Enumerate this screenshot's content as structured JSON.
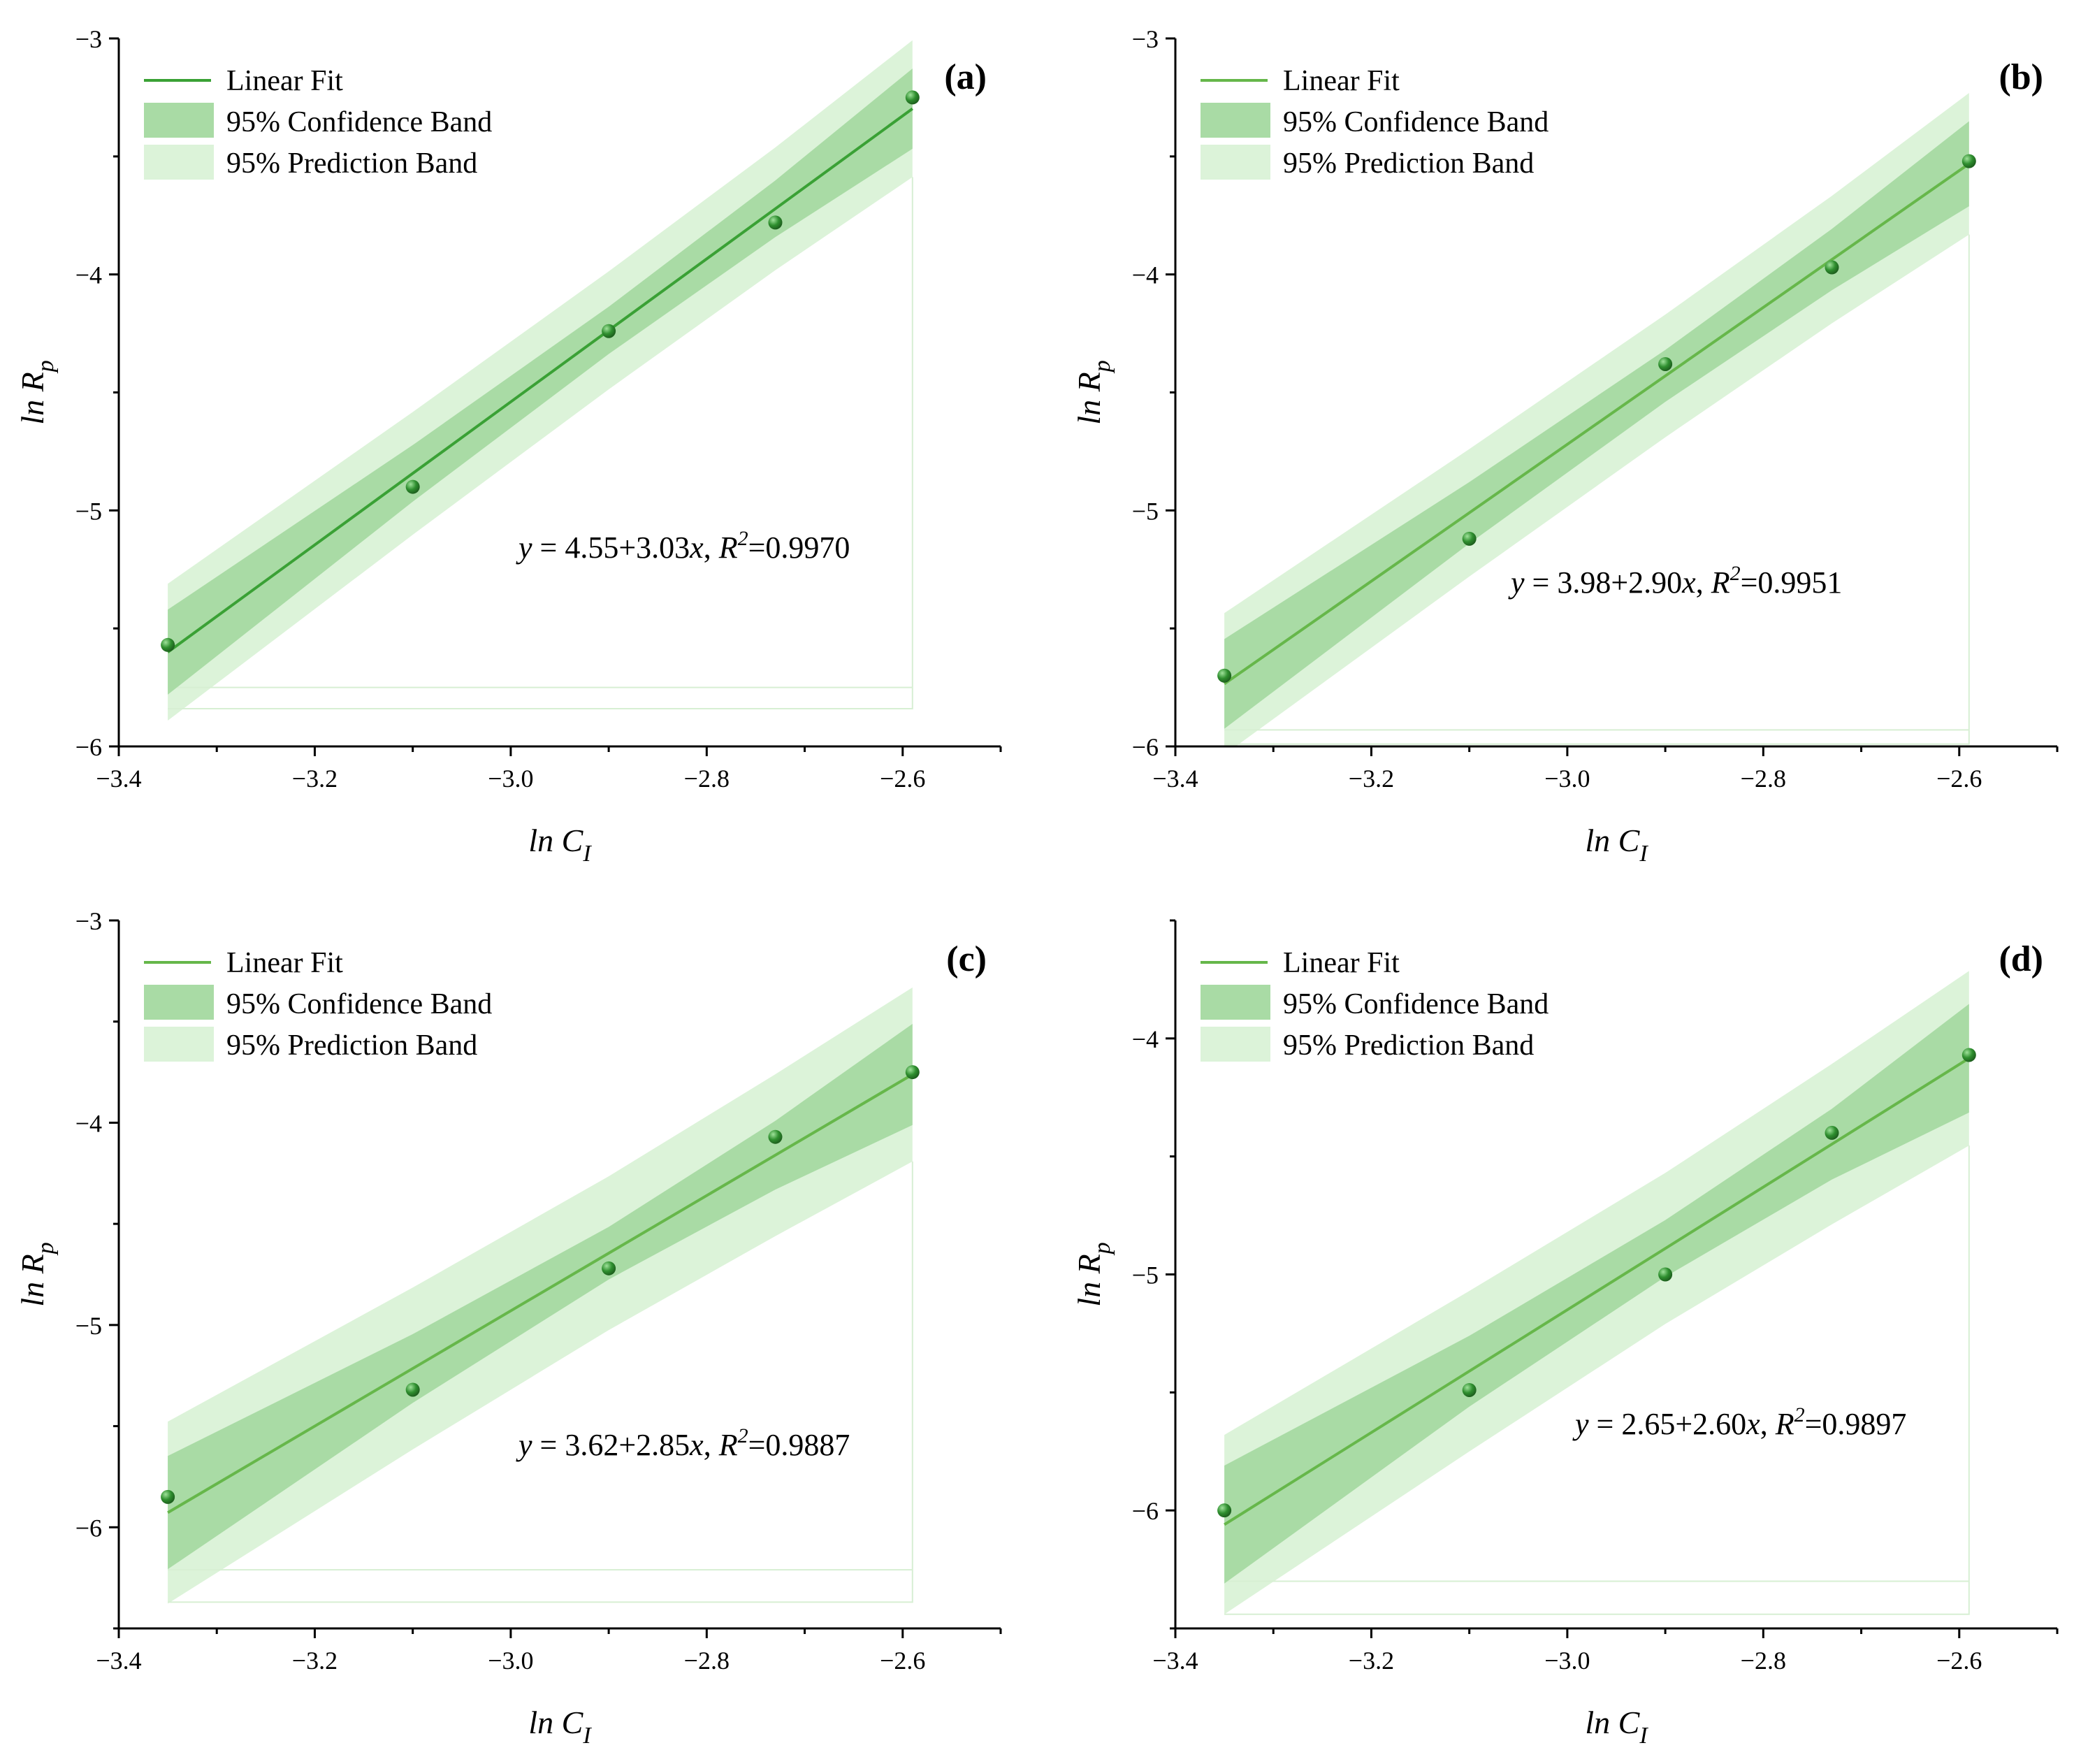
{
  "figure": {
    "legend": {
      "fit_label": "Linear Fit",
      "confidence_label": "95% Confidence Band",
      "prediction_label": "95% Prediction Band"
    },
    "colors": {
      "fit_line_dark": "#3aa135",
      "fit_line_light": "#66b74a",
      "confidence_band": "#a9dba5",
      "prediction_band": "#dcf3d9",
      "point": "#2f8f2f",
      "point_highlight": "#9fe29a"
    }
  },
  "chart_data": [
    {
      "type": "scatter",
      "panel_label": "(a)",
      "xlabel": "ln C",
      "xlabel_sub": "I",
      "ylabel": "ln R",
      "ylabel_sub": "p",
      "xlim": [
        -3.4,
        -2.5
      ],
      "ylim": [
        -6,
        -3
      ],
      "x_ticks": [
        -3.4,
        -3.2,
        -3.0,
        -2.8,
        -2.6
      ],
      "x_tick_labels": [
        "−3.4",
        "−3.2",
        "−3.0",
        "−2.8",
        "−2.6"
      ],
      "y_ticks": [
        -6,
        -5,
        -4,
        -3
      ],
      "y_tick_labels": [
        "−6",
        "−5",
        "−4",
        "−3"
      ],
      "x": [
        -3.35,
        -3.1,
        -2.9,
        -2.73,
        -2.59
      ],
      "y": [
        -5.57,
        -4.9,
        -4.24,
        -3.78,
        -3.25
      ],
      "fit": {
        "intercept": 4.55,
        "slope": 3.03
      },
      "band_bottom": -5.75,
      "pred_bottom": -5.84,
      "confidence_halfwidth": [
        0.18,
        0.12,
        0.1,
        0.12,
        0.17
      ],
      "prediction_halfwidth": [
        0.29,
        0.26,
        0.25,
        0.26,
        0.29
      ],
      "equation_parts": [
        "y",
        " = 4.55+3.03",
        "x",
        ", ",
        "R",
        "2",
        "=0.9970"
      ],
      "legend_line_dark": true
    },
    {
      "type": "scatter",
      "panel_label": "(b)",
      "xlabel": "ln C",
      "xlabel_sub": "I",
      "ylabel": "ln R",
      "ylabel_sub": "p",
      "xlim": [
        -3.4,
        -2.5
      ],
      "ylim": [
        -6,
        -3
      ],
      "x_ticks": [
        -3.4,
        -3.2,
        -3.0,
        -2.8,
        -2.6
      ],
      "x_tick_labels": [
        "−3.4",
        "−3.2",
        "−3.0",
        "−2.8",
        "−2.6"
      ],
      "y_ticks": [
        -6,
        -5,
        -4,
        -3
      ],
      "y_tick_labels": [
        "−6",
        "−5",
        "−4",
        "−3"
      ],
      "x": [
        -3.35,
        -3.1,
        -2.9,
        -2.73,
        -2.59
      ],
      "y": [
        -5.7,
        -5.12,
        -4.38,
        -3.97,
        -3.52
      ],
      "fit": {
        "intercept": 3.98,
        "slope": 2.9
      },
      "band_bottom": -5.93,
      "pred_bottom": -5.99,
      "confidence_halfwidth": [
        0.19,
        0.13,
        0.11,
        0.13,
        0.18
      ],
      "prediction_halfwidth": [
        0.3,
        0.27,
        0.26,
        0.27,
        0.3
      ],
      "equation_parts": [
        "y",
        " = 3.98+2.90",
        "x",
        ", ",
        "R",
        "2",
        "=0.9951"
      ],
      "legend_line_dark": false
    },
    {
      "type": "scatter",
      "panel_label": "(c)",
      "xlabel": "ln C",
      "xlabel_sub": "I",
      "ylabel": "ln R",
      "ylabel_sub": "p",
      "xlim": [
        -3.4,
        -2.5
      ],
      "ylim": [
        -6.5,
        -3
      ],
      "x_ticks": [
        -3.4,
        -3.2,
        -3.0,
        -2.8,
        -2.6
      ],
      "x_tick_labels": [
        "−3.4",
        "−3.2",
        "−3.0",
        "−2.8",
        "−2.6"
      ],
      "y_ticks": [
        -6,
        -5,
        -4,
        -3
      ],
      "y_tick_labels": [
        "−6",
        "−5",
        "−4",
        "−3"
      ],
      "x": [
        -3.35,
        -3.1,
        -2.9,
        -2.73,
        -2.59
      ],
      "y": [
        -5.85,
        -5.32,
        -4.72,
        -4.07,
        -3.75
      ],
      "fit": {
        "intercept": 3.62,
        "slope": 2.85
      },
      "band_bottom": -6.21,
      "pred_bottom": -6.37,
      "confidence_halfwidth": [
        0.28,
        0.17,
        0.13,
        0.17,
        0.25
      ],
      "prediction_halfwidth": [
        0.45,
        0.4,
        0.38,
        0.4,
        0.43
      ],
      "equation_parts": [
        "y",
        " = 3.62+2.85",
        "x",
        ", ",
        "R",
        "2",
        "=0.9887"
      ],
      "legend_line_dark": false
    },
    {
      "type": "scatter",
      "panel_label": "(d)",
      "xlabel": "ln C",
      "xlabel_sub": "I",
      "ylabel": "ln R",
      "ylabel_sub": "p",
      "xlim": [
        -3.4,
        -2.5
      ],
      "ylim": [
        -6.5,
        -3.5
      ],
      "x_ticks": [
        -3.4,
        -3.2,
        -3.0,
        -2.8,
        -2.6
      ],
      "x_tick_labels": [
        "−3.4",
        "−3.2",
        "−3.0",
        "−2.8",
        "−2.6"
      ],
      "y_ticks": [
        -6,
        -5,
        -4
      ],
      "y_tick_labels": [
        "−6",
        "−5",
        "−4"
      ],
      "x": [
        -3.35,
        -3.1,
        -2.9,
        -2.73,
        -2.59
      ],
      "y": [
        -6.0,
        -5.49,
        -5.0,
        -4.4,
        -4.07
      ],
      "fit": {
        "intercept": 2.65,
        "slope": 2.6
      },
      "band_bottom": -6.3,
      "pred_bottom": -6.44,
      "confidence_halfwidth": [
        0.25,
        0.15,
        0.12,
        0.15,
        0.23
      ],
      "prediction_halfwidth": [
        0.38,
        0.34,
        0.32,
        0.34,
        0.37
      ],
      "equation_parts": [
        "y",
        " = 2.65+2.60",
        "x",
        ", ",
        "R",
        "2",
        "=0.9897"
      ],
      "legend_line_dark": false
    }
  ]
}
